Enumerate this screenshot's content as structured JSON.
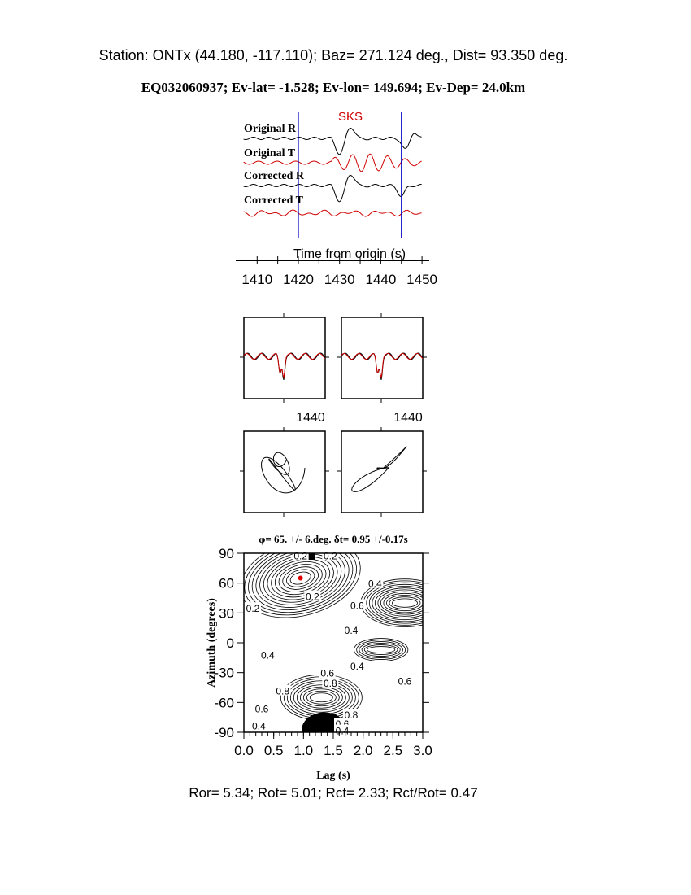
{
  "header": {
    "station_line": "Station: ONTx (44.180, -117.110); Baz=  271.124 deg., Dist=   93.350 deg.",
    "event_line": "EQ032060937; Ev-lat=  -1.528; Ev-lon= 149.694; Ev-Dep= 24.0km"
  },
  "footer": "Ror= 5.34; Rot= 5.01; Rct= 2.33; Rct/Rot= 0.47",
  "chart_data": [
    {
      "type": "line",
      "phase_label": "SKS",
      "traces": [
        {
          "name": "Original R",
          "color": "#000000"
        },
        {
          "name": "Original T",
          "color": "#d00000"
        },
        {
          "name": "Corrected R",
          "color": "#000000"
        },
        {
          "name": "Corrected T",
          "color": "#d00000"
        }
      ],
      "window_markers_s": [
        1420,
        1445
      ],
      "window_color": "#0000c0",
      "xlabel": "Time from origin (s)",
      "xticks": [
        "1410",
        "1420",
        "1430",
        "1440",
        "1450"
      ],
      "xlim": [
        1406,
        1450
      ]
    },
    {
      "type": "line",
      "panels": [
        "original-waveforms",
        "corrected-waveforms"
      ],
      "tick_label": "1440"
    },
    {
      "type": "line",
      "panels": [
        "original-particle-motion",
        "corrected-particle-motion"
      ]
    },
    {
      "type": "heatmap",
      "title": "φ= 65. +/- 6.deg. δt= 0.95 +/-0.17s",
      "xlabel": "Lag (s)",
      "ylabel": "Azimuth (degrees)",
      "xlim": [
        0,
        3
      ],
      "ylim": [
        -90,
        90
      ],
      "xticks": [
        "0.0",
        "0.5",
        "1.0",
        "1.5",
        "2.0",
        "2.5",
        "3.0"
      ],
      "yticks": [
        "90",
        "60",
        "30",
        "0",
        "-30",
        "-60",
        "-90"
      ],
      "best_fit": {
        "lag": 0.95,
        "azimuth": 65,
        "color": "#e00000"
      },
      "contour_labels": [
        {
          "text": "0.2",
          "lag": 0.95,
          "az": 88
        },
        {
          "text": "0.2",
          "lag": 1.45,
          "az": 88
        },
        {
          "text": "0.4",
          "lag": 2.2,
          "az": 60
        },
        {
          "text": "0.2",
          "lag": 1.15,
          "az": 47
        },
        {
          "text": "0.2",
          "lag": 0.15,
          "az": 35
        },
        {
          "text": "0.6",
          "lag": 1.9,
          "az": 38
        },
        {
          "text": "0.4",
          "lag": 1.8,
          "az": 13
        },
        {
          "text": "0.4",
          "lag": 0.4,
          "az": -12
        },
        {
          "text": "0.4",
          "lag": 1.9,
          "az": -23
        },
        {
          "text": "0.6",
          "lag": 1.4,
          "az": -30
        },
        {
          "text": "0.8",
          "lag": 1.45,
          "az": -40
        },
        {
          "text": "0.6",
          "lag": 2.7,
          "az": -38
        },
        {
          "text": "0.8",
          "lag": 0.65,
          "az": -48
        },
        {
          "text": "0.6",
          "lag": 0.3,
          "az": -66
        },
        {
          "text": "0.8",
          "lag": 1.8,
          "az": -72
        },
        {
          "text": "0.6",
          "lag": 1.65,
          "az": -81
        },
        {
          "text": "0.4",
          "lag": 1.65,
          "az": -88
        },
        {
          "text": "0.4",
          "lag": 0.25,
          "az": -83
        }
      ]
    }
  ]
}
